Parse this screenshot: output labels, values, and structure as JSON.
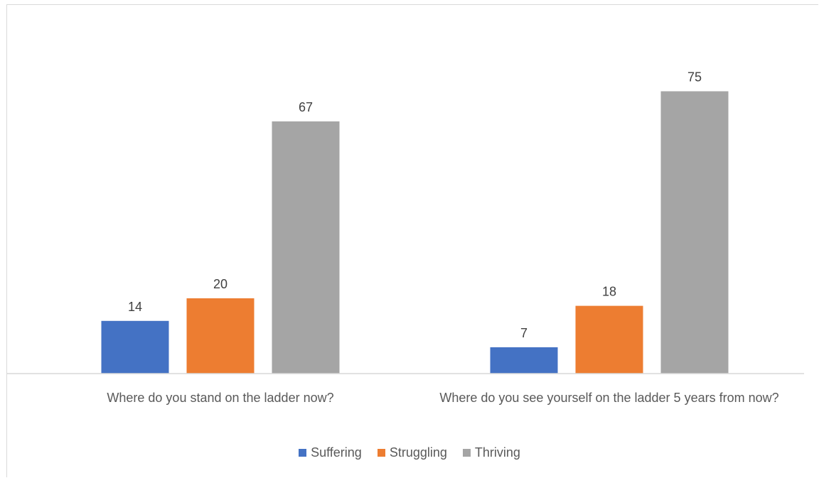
{
  "chart_data": {
    "type": "bar",
    "title": "",
    "xlabel": "",
    "ylabel": "",
    "ylim": [
      0,
      80
    ],
    "grid": false,
    "legend_position": "bottom",
    "categories": [
      "Where do you stand on the ladder now?",
      "Where do you see yourself on the ladder 5 years from now?"
    ],
    "series": [
      {
        "name": "Suffering",
        "color": "#4472c4",
        "values": [
          14,
          7
        ]
      },
      {
        "name": "Struggling",
        "color": "#ed7d31",
        "values": [
          20,
          18
        ]
      },
      {
        "name": "Thriving",
        "color": "#a5a5a5",
        "values": [
          67,
          75
        ]
      }
    ]
  }
}
